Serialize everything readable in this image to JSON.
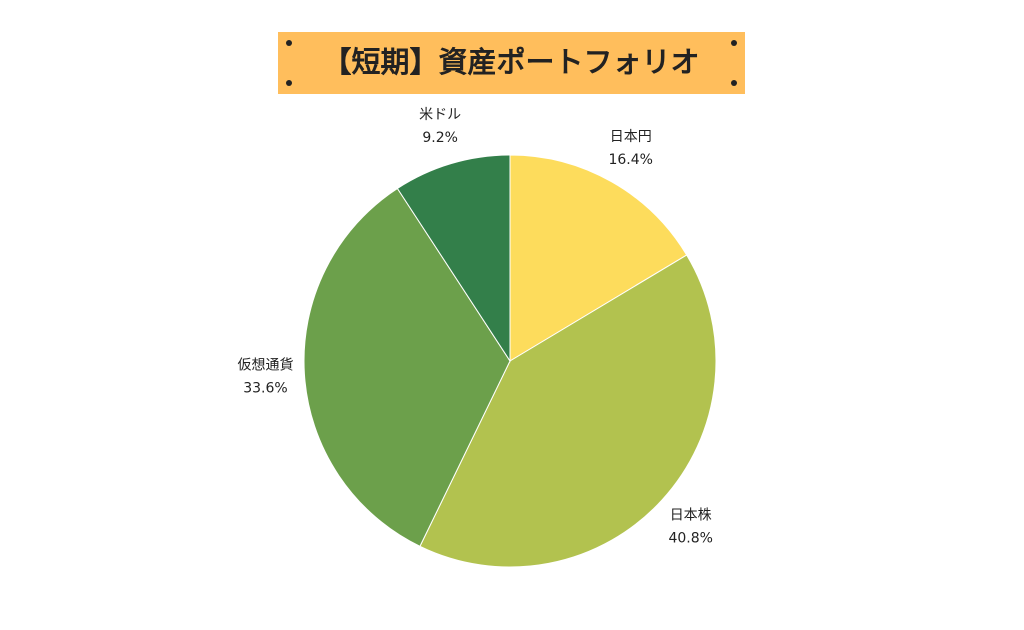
{
  "chart_data": {
    "type": "pie",
    "title": "【短期】資産ポートフォリオ",
    "categories": [
      "日本円",
      "日本株",
      "仮想通貨",
      "米ドル"
    ],
    "values": [
      16.4,
      40.8,
      33.6,
      9.2
    ],
    "value_labels": [
      "16.4%",
      "40.8%",
      "33.6%",
      "9.2%"
    ],
    "colors": [
      "#fddc5c",
      "#b2c24f",
      "#6ca04b",
      "#337f4a"
    ]
  }
}
